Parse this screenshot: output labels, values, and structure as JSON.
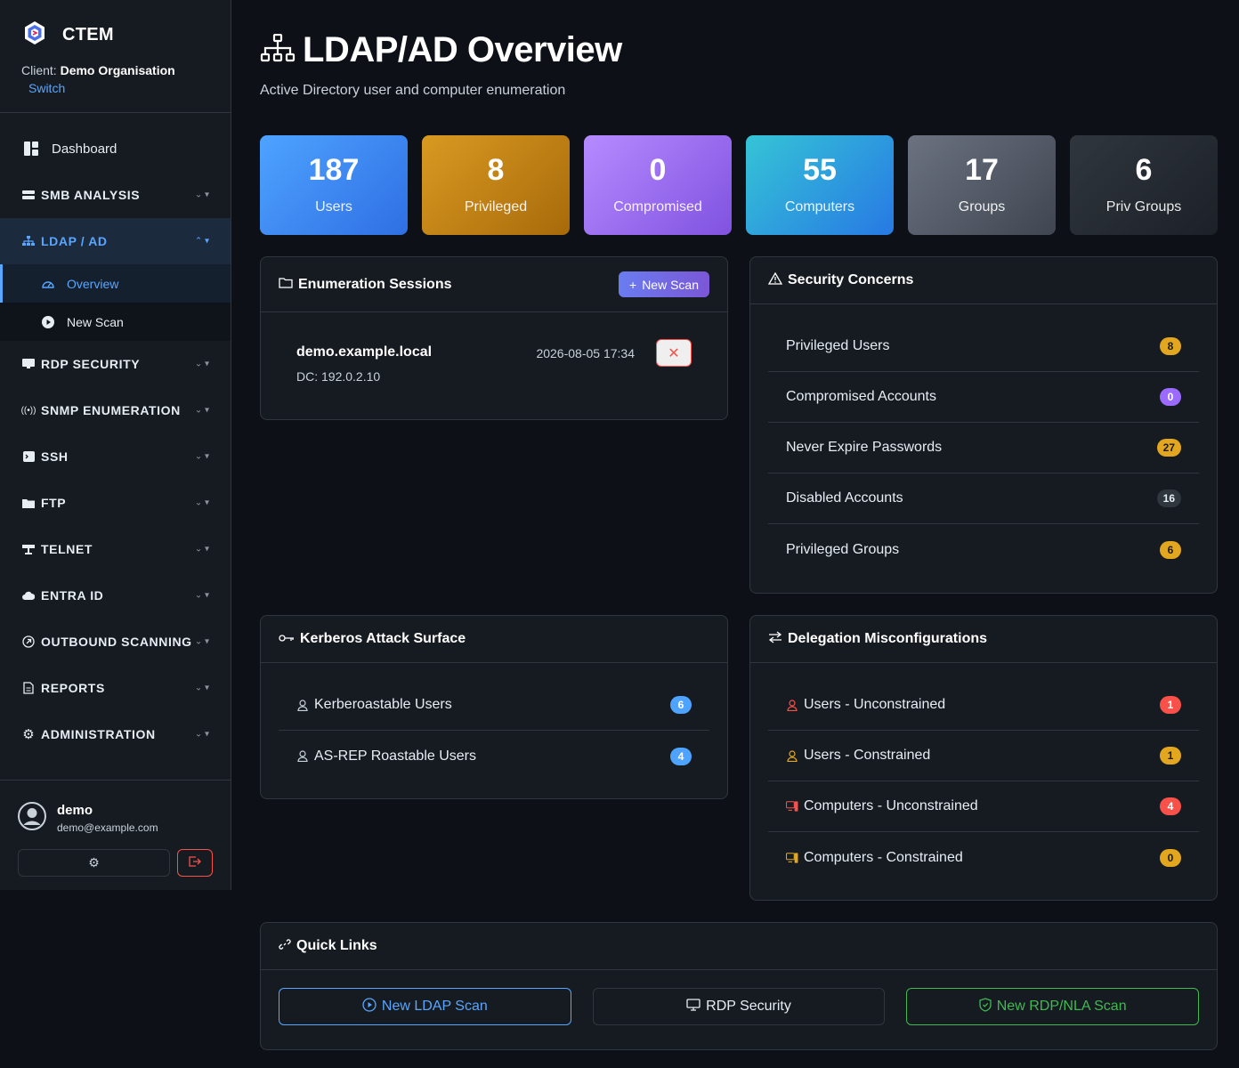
{
  "brand": {
    "name": "CTEM",
    "client_label": "Client:",
    "client_name": "Demo Organisation",
    "switch": "Switch"
  },
  "nav": {
    "dashboard": "Dashboard",
    "smb": "SMB ANALYSIS",
    "ldap": "LDAP / AD",
    "ldap_sub": {
      "overview": "Overview",
      "new_scan": "New Scan"
    },
    "rdp": "RDP SECURITY",
    "snmp": "SNMP ENUMERATION",
    "ssh": "SSH",
    "ftp": "FTP",
    "telnet": "TELNET",
    "entra": "ENTRA ID",
    "outbound": "OUTBOUND SCANNING",
    "reports": "REPORTS",
    "admin": "ADMINISTRATION"
  },
  "user": {
    "name": "demo",
    "email": "demo@example.com"
  },
  "page": {
    "title": "LDAP/AD Overview",
    "subtitle": "Active Directory user and computer enumeration"
  },
  "stats": [
    {
      "value": "187",
      "label": "Users"
    },
    {
      "value": "8",
      "label": "Privileged"
    },
    {
      "value": "0",
      "label": "Compromised"
    },
    {
      "value": "55",
      "label": "Computers"
    },
    {
      "value": "17",
      "label": "Groups"
    },
    {
      "value": "6",
      "label": "Priv Groups"
    }
  ],
  "sessions": {
    "title": "Enumeration Sessions",
    "new_scan": "New Scan",
    "items": [
      {
        "domain": "demo.example.local",
        "dc": "DC: 192.0.2.10",
        "date": "2026-08-05 17:34"
      }
    ]
  },
  "concerns": {
    "title": "Security Concerns",
    "items": [
      {
        "label": "Privileged Users",
        "count": "8"
      },
      {
        "label": "Compromised Accounts",
        "count": "0"
      },
      {
        "label": "Never Expire Passwords",
        "count": "27"
      },
      {
        "label": "Disabled Accounts",
        "count": "16"
      },
      {
        "label": "Privileged Groups",
        "count": "6"
      }
    ]
  },
  "kerberos": {
    "title": "Kerberos Attack Surface",
    "items": [
      {
        "label": "Kerberoastable Users",
        "count": "6"
      },
      {
        "label": "AS-REP Roastable Users",
        "count": "4"
      }
    ]
  },
  "delegation": {
    "title": "Delegation Misconfigurations",
    "items": [
      {
        "label": "Users - Unconstrained",
        "count": "1"
      },
      {
        "label": "Users - Constrained",
        "count": "1"
      },
      {
        "label": "Computers - Unconstrained",
        "count": "4"
      },
      {
        "label": "Computers - Constrained",
        "count": "0"
      }
    ]
  },
  "quick_links": {
    "title": "Quick Links",
    "new_ldap": "New LDAP Scan",
    "rdp": "RDP Security",
    "new_rdp": "New RDP/NLA Scan"
  },
  "colors": {
    "accent": "#58a6ff",
    "danger": "#f85149",
    "success": "#3fb950",
    "warning": "#e2a71f"
  }
}
